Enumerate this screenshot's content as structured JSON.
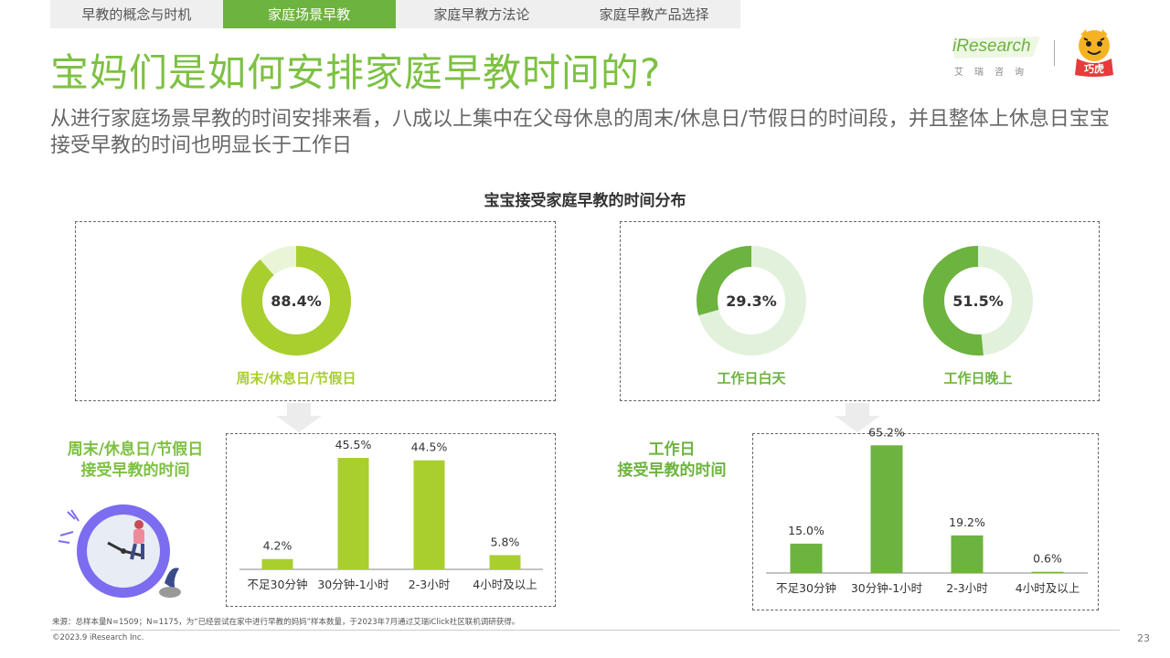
{
  "tabs": [
    {
      "label": "早教的概念与时机",
      "active": false
    },
    {
      "label": "家庭场景早教",
      "active": true
    },
    {
      "label": "家庭早教方法论",
      "active": false
    },
    {
      "label": "家庭早教产品选择",
      "active": false
    }
  ],
  "title": "宝妈们是如何安排家庭早教时间的?",
  "subtitle": "从进行家庭场景早教的时间安排来看，八成以上集中在父母休息的周末/休息日/节假日的时间段，并且整体上休息日宝宝接受早教的时间也明显长于工作日",
  "logo": {
    "brand": "iResearch",
    "brand_cn": "艾瑞咨询",
    "partner": "巧虎"
  },
  "chart_title": "宝宝接受家庭早教的时间分布",
  "colors": {
    "lime": "#a8cf2e",
    "lime_light": "#eaf4d6",
    "green": "#6db33f",
    "green_light": "#e2f1db",
    "title_green": "#7dc142",
    "clock_purple": "#7b6cf0"
  },
  "chart_data": [
    {
      "type": "pie",
      "variant": "donut",
      "donuts": [
        {
          "label": "周末/休息日/节假日",
          "value": 88.4,
          "display": "88.4%"
        }
      ]
    },
    {
      "type": "pie",
      "variant": "donut",
      "donuts": [
        {
          "label": "工作日白天",
          "value": 29.3,
          "display": "29.3%"
        },
        {
          "label": "工作日晚上",
          "value": 51.5,
          "display": "51.5%"
        }
      ]
    },
    {
      "type": "bar",
      "title": "周末/休息日/节假日\n接受早教的时间",
      "title_lines": [
        "周末/休息日/节假日",
        "接受早教的时间"
      ],
      "categories": [
        "不足30分钟",
        "30分钟-1小时",
        "2-3小时",
        "4小时及以上"
      ],
      "values": [
        4.2,
        45.5,
        44.5,
        5.8
      ],
      "labels": [
        "4.2%",
        "45.5%",
        "44.5%",
        "5.8%"
      ],
      "ylim": [
        0,
        50
      ]
    },
    {
      "type": "bar",
      "title": "工作日\n接受早教的时间",
      "title_lines": [
        "工作日",
        "接受早教的时间"
      ],
      "categories": [
        "不足30分钟",
        "30分钟-1小时",
        "2-3小时",
        "4小时及以上"
      ],
      "values": [
        15.0,
        65.2,
        19.2,
        0.6
      ],
      "labels": [
        "15.0%",
        "65.2%",
        "19.2%",
        "0.6%"
      ],
      "ylim": [
        0,
        70
      ]
    }
  ],
  "footnote": "来源：总样本量N=1509；N=1175，为“已经尝试在家中进行早教的妈妈”样本数量，于2023年7月通过艾瑞iClick社区联机调研获得。",
  "copyright": "©2023.9 iResearch Inc.",
  "page_number": "23"
}
